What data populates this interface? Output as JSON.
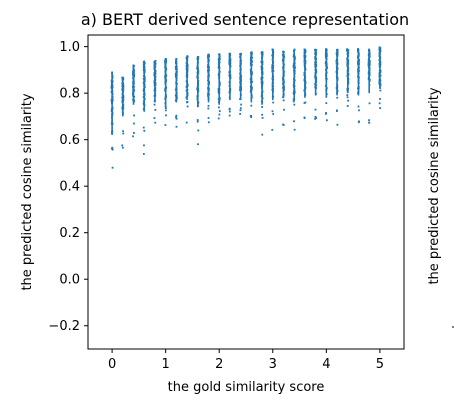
{
  "chart_data": {
    "type": "scatter",
    "title": "a) BERT derived sentence representation",
    "xlabel": "the gold similarity score",
    "ylabel": "the predicted cosine similarity",
    "right_partial_ylabel": "the predicted cosine similarity",
    "xlim": [
      -0.45,
      5.45
    ],
    "ylim": [
      -0.3,
      1.05
    ],
    "xticks": [
      0,
      1,
      2,
      3,
      4,
      5
    ],
    "xtick_labels": [
      "0",
      "1",
      "2",
      "3",
      "4",
      "5"
    ],
    "yticks": [
      -0.2,
      0.0,
      0.2,
      0.4,
      0.6,
      0.8,
      1.0
    ],
    "ytick_labels": [
      "−0.2",
      "0.0",
      "0.2",
      "0.4",
      "0.6",
      "0.8",
      "1.0"
    ],
    "marker_color": "#1f77b4",
    "grid": false,
    "series": [
      {
        "gold_levels": [
          0,
          0.2,
          0.4,
          0.6,
          0.8,
          1.0,
          1.2,
          1.4,
          1.6,
          1.8,
          2.0,
          2.2,
          2.4,
          2.6,
          2.8,
          3.0,
          3.2,
          3.4,
          3.6,
          3.8,
          4.0,
          4.2,
          4.4,
          4.6,
          4.8,
          5.0
        ],
        "pred_min": [
          0.45,
          0.52,
          0.58,
          0.52,
          0.6,
          0.62,
          0.62,
          0.65,
          0.57,
          0.64,
          0.6,
          0.65,
          0.66,
          0.62,
          0.59,
          0.64,
          0.66,
          0.63,
          0.65,
          0.68,
          0.65,
          0.66,
          0.7,
          0.64,
          0.66,
          0.7
        ],
        "pred_max": [
          0.89,
          0.87,
          0.92,
          0.94,
          0.94,
          0.95,
          0.95,
          0.96,
          0.96,
          0.97,
          0.97,
          0.97,
          0.97,
          0.98,
          0.98,
          0.99,
          0.98,
          0.99,
          0.99,
          0.99,
          0.99,
          0.99,
          0.99,
          0.99,
          0.99,
          1.0
        ],
        "dense_from": [
          0.62,
          0.7,
          0.75,
          0.72,
          0.76,
          0.74,
          0.76,
          0.77,
          0.74,
          0.76,
          0.75,
          0.77,
          0.77,
          0.76,
          0.75,
          0.77,
          0.78,
          0.77,
          0.78,
          0.79,
          0.78,
          0.79,
          0.8,
          0.79,
          0.8,
          0.82
        ]
      }
    ]
  }
}
